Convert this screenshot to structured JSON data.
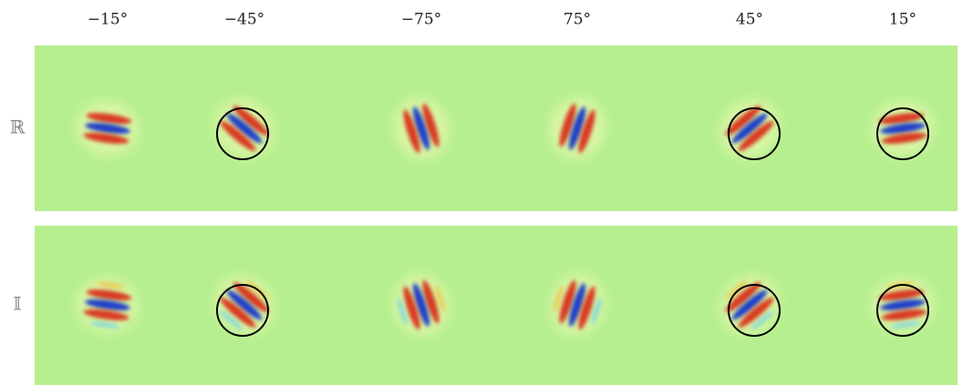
{
  "column_labels": [
    "−15°",
    "−45°",
    "−75°",
    "75°",
    "45°",
    "15°"
  ],
  "row_labels": [
    "ℝ",
    "𝕀"
  ]
}
